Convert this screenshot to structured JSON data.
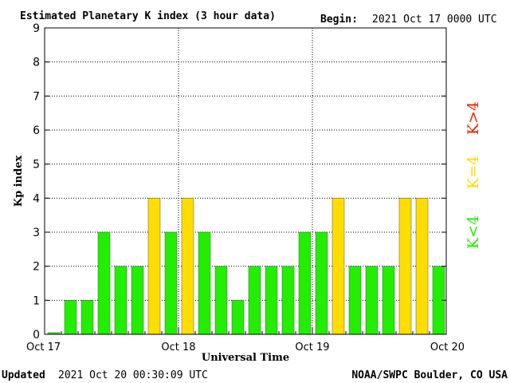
{
  "header": {
    "title": "Estimated Planetary K index (3 hour data)",
    "begin_label": "Begin:",
    "begin_value": "2021 Oct 17 0000 UTC"
  },
  "footer": {
    "updated_label": "Updated",
    "updated_value": "2021 Oct 20 00:30:09 UTC",
    "source": "NOAA/SWPC Boulder, CO USA"
  },
  "legend": {
    "below4": "K<4",
    "equal4": "K=4",
    "above4": "K>4"
  },
  "colors": {
    "below4": "#22ee00",
    "equal4": "#ffdd00",
    "above4": "#ee2200",
    "bar_edge": "#555555",
    "axis": "#000000",
    "grid": "#000000"
  },
  "chart_data": {
    "type": "bar",
    "xlabel": "Universal Time",
    "ylabel": "Kp index",
    "ylim": [
      0,
      9
    ],
    "yticks": [
      0,
      1,
      2,
      3,
      4,
      5,
      6,
      7,
      8,
      9
    ],
    "xticks": [
      "Oct 17",
      "Oct 18",
      "Oct 19",
      "Oct 20"
    ],
    "interval_hours": 3,
    "grid": true,
    "values": [
      0.05,
      1,
      1,
      3,
      2,
      2,
      4,
      3,
      4,
      3,
      2,
      1,
      2,
      2,
      2,
      3,
      3,
      4,
      2,
      2,
      2,
      4,
      4,
      2
    ]
  }
}
